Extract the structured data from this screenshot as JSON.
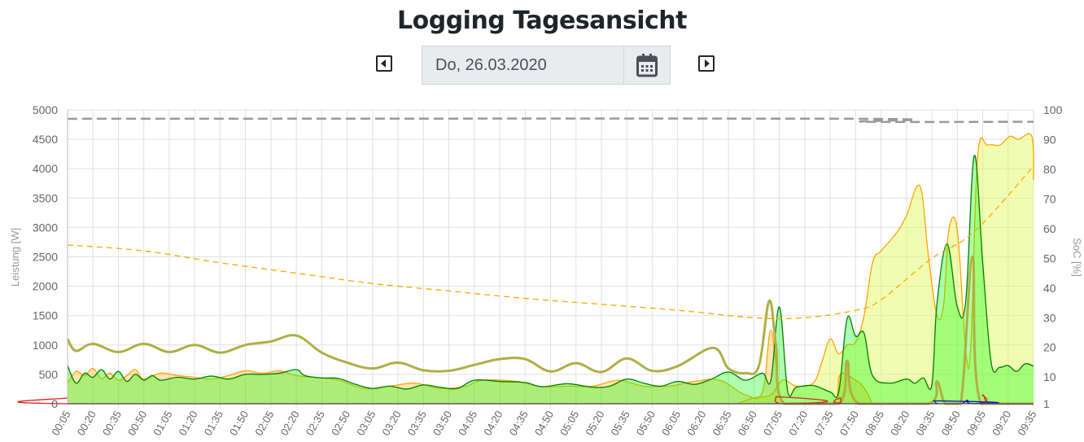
{
  "header": {
    "title": "Logging Tagesansicht",
    "date": "Do, 26.03.2020",
    "prev_icon": "caret-left-square-icon",
    "next_icon": "caret-right-square-icon",
    "calendar_icon": "calendar-icon"
  },
  "chart_data": {
    "type": "area",
    "xlabel": "",
    "ylabel_left": "Leistung [W]",
    "ylabel_right": "SoC [%]",
    "ylim_left": [
      0,
      5000
    ],
    "ylim_right": [
      1,
      100
    ],
    "yticks_left": [
      "0",
      "500",
      "1000",
      "1500",
      "2000",
      "2500",
      "3000",
      "3500",
      "4000",
      "4500",
      "5000"
    ],
    "yticks_right": [
      "1",
      "10",
      "20",
      "30",
      "40",
      "50",
      "60",
      "70",
      "80",
      "90",
      "100"
    ],
    "xticks": [
      "00:05",
      "00:20",
      "00:35",
      "00:50",
      "01:05",
      "01:20",
      "01:35",
      "01:50",
      "02:05",
      "02:20",
      "02:35",
      "02:50",
      "03:05",
      "03:20",
      "03:35",
      "03:50",
      "04:05",
      "04:20",
      "04:35",
      "04:50",
      "05:05",
      "05:20",
      "05:35",
      "05:50",
      "06:05",
      "06:20",
      "06:35",
      "06:50",
      "07:05",
      "07:20",
      "07:35",
      "07:50",
      "08:05",
      "08:20",
      "08:35",
      "08:50",
      "09:05",
      "09:20",
      "09:35"
    ],
    "grid": true,
    "series": [
      {
        "axis": "left",
        "color": "#ffa500",
        "fill": "rgba(225,250,100,0.5)",
        "style": "area",
        "points": [
          [
            "06:40",
            0
          ],
          [
            "06:50",
            100
          ],
          [
            "07:00",
            150
          ],
          [
            "07:07",
            400
          ],
          [
            "07:15",
            300
          ],
          [
            "07:25",
            350
          ],
          [
            "07:30",
            700
          ],
          [
            "07:35",
            1100
          ],
          [
            "07:40",
            850
          ],
          [
            "07:45",
            1000
          ],
          [
            "07:50",
            1050
          ],
          [
            "07:55",
            1500
          ],
          [
            "08:00",
            2400
          ],
          [
            "08:05",
            2600
          ],
          [
            "08:14",
            2900
          ],
          [
            "08:20",
            3200
          ],
          [
            "08:28",
            3700
          ],
          [
            "08:33",
            2500
          ],
          [
            "08:38",
            1500
          ],
          [
            "08:42",
            1700
          ],
          [
            "08:45",
            2950
          ],
          [
            "08:50",
            2950
          ],
          [
            "08:55",
            900
          ],
          [
            "08:58",
            1000
          ],
          [
            "09:02",
            4200
          ],
          [
            "09:08",
            4400
          ],
          [
            "09:15",
            4400
          ],
          [
            "09:21",
            4550
          ],
          [
            "09:26",
            4500
          ],
          [
            "09:34",
            4550
          ],
          [
            "09:35",
            3800
          ]
        ]
      },
      {
        "axis": "left",
        "color": "#ffa500",
        "fill": "rgba(255,165,0,0.3)",
        "style": "area",
        "points": [
          [
            "00:05",
            350
          ],
          [
            "00:10",
            550
          ],
          [
            "00:15",
            480
          ],
          [
            "00:20",
            600
          ],
          [
            "00:25",
            430
          ],
          [
            "00:30",
            520
          ],
          [
            "00:35",
            400
          ],
          [
            "00:40",
            480
          ],
          [
            "00:45",
            580
          ],
          [
            "00:50",
            420
          ],
          [
            "01:00",
            520
          ],
          [
            "01:10",
            480
          ],
          [
            "01:20",
            450
          ],
          [
            "01:30",
            420
          ],
          [
            "01:40",
            480
          ],
          [
            "01:50",
            560
          ],
          [
            "02:00",
            520
          ],
          [
            "02:10",
            560
          ],
          [
            "02:20",
            480
          ],
          [
            "02:30",
            450
          ],
          [
            "02:45",
            400
          ],
          [
            "03:00",
            260
          ],
          [
            "03:15",
            300
          ],
          [
            "03:30",
            350
          ],
          [
            "03:45",
            260
          ],
          [
            "04:00",
            300
          ],
          [
            "04:10",
            400
          ],
          [
            "04:30",
            380
          ],
          [
            "04:45",
            290
          ],
          [
            "05:00",
            300
          ],
          [
            "05:15",
            300
          ],
          [
            "05:30",
            400
          ],
          [
            "05:45",
            300
          ],
          [
            "06:00",
            300
          ],
          [
            "06:15",
            380
          ],
          [
            "06:30",
            400
          ],
          [
            "06:45",
            150
          ],
          [
            "06:55",
            200
          ],
          [
            "07:00",
            1250
          ],
          [
            "07:05",
            200
          ],
          [
            "07:10",
            0
          ],
          [
            "07:36",
            0
          ],
          [
            "07:41",
            500
          ],
          [
            "07:50",
            400
          ],
          [
            "07:55",
            270
          ],
          [
            "08:00",
            0
          ]
        ]
      },
      {
        "axis": "left",
        "color": "#008000",
        "fill": "rgba(0,255,0,0.32)",
        "style": "area",
        "points": [
          [
            "00:05",
            650
          ],
          [
            "00:10",
            350
          ],
          [
            "00:15",
            520
          ],
          [
            "00:20",
            450
          ],
          [
            "00:25",
            580
          ],
          [
            "00:30",
            420
          ],
          [
            "00:35",
            550
          ],
          [
            "00:40",
            380
          ],
          [
            "00:45",
            500
          ],
          [
            "00:50",
            400
          ],
          [
            "00:55",
            480
          ],
          [
            "01:00",
            400
          ],
          [
            "01:10",
            450
          ],
          [
            "01:20",
            420
          ],
          [
            "01:30",
            470
          ],
          [
            "01:40",
            420
          ],
          [
            "01:50",
            500
          ],
          [
            "02:00",
            500
          ],
          [
            "02:10",
            520
          ],
          [
            "02:20",
            580
          ],
          [
            "02:25",
            480
          ],
          [
            "02:35",
            440
          ],
          [
            "02:45",
            430
          ],
          [
            "02:55",
            330
          ],
          [
            "03:05",
            260
          ],
          [
            "03:15",
            300
          ],
          [
            "03:25",
            250
          ],
          [
            "03:35",
            320
          ],
          [
            "03:45",
            280
          ],
          [
            "03:55",
            260
          ],
          [
            "04:05",
            400
          ],
          [
            "04:20",
            380
          ],
          [
            "04:35",
            360
          ],
          [
            "04:45",
            290
          ],
          [
            "05:00",
            340
          ],
          [
            "05:15",
            280
          ],
          [
            "05:25",
            300
          ],
          [
            "05:35",
            420
          ],
          [
            "05:45",
            350
          ],
          [
            "05:55",
            300
          ],
          [
            "06:05",
            380
          ],
          [
            "06:15",
            330
          ],
          [
            "06:25",
            420
          ],
          [
            "06:35",
            540
          ],
          [
            "06:45",
            400
          ],
          [
            "06:55",
            520
          ],
          [
            "07:00",
            400
          ],
          [
            "07:05",
            1650
          ],
          [
            "07:10",
            200
          ],
          [
            "07:15",
            280
          ],
          [
            "07:25",
            310
          ],
          [
            "07:35",
            200
          ],
          [
            "07:40",
            190
          ],
          [
            "07:45",
            1450
          ],
          [
            "07:50",
            1150
          ],
          [
            "07:55",
            1200
          ],
          [
            "08:00",
            480
          ],
          [
            "08:10",
            350
          ],
          [
            "08:20",
            420
          ],
          [
            "08:25",
            350
          ],
          [
            "08:30",
            440
          ],
          [
            "08:35",
            320
          ],
          [
            "08:38",
            1700
          ],
          [
            "08:44",
            2720
          ],
          [
            "08:50",
            1650
          ],
          [
            "08:55",
            1750
          ],
          [
            "09:00",
            4220
          ],
          [
            "09:05",
            2400
          ],
          [
            "09:10",
            700
          ],
          [
            "09:15",
            620
          ],
          [
            "09:20",
            650
          ],
          [
            "09:25",
            550
          ],
          [
            "09:30",
            680
          ],
          [
            "09:35",
            640
          ]
        ]
      },
      {
        "axis": "left",
        "color": "#afaf45",
        "fill": "none",
        "style": "thick-line",
        "points": [
          [
            "00:05",
            1100
          ],
          [
            "00:10",
            900
          ],
          [
            "00:20",
            1020
          ],
          [
            "00:35",
            880
          ],
          [
            "00:50",
            1020
          ],
          [
            "01:05",
            880
          ],
          [
            "01:20",
            1000
          ],
          [
            "01:35",
            870
          ],
          [
            "01:50",
            1000
          ],
          [
            "02:05",
            1060
          ],
          [
            "02:20",
            1160
          ],
          [
            "02:35",
            870
          ],
          [
            "02:50",
            700
          ],
          [
            "03:05",
            600
          ],
          [
            "03:20",
            700
          ],
          [
            "03:35",
            570
          ],
          [
            "03:50",
            560
          ],
          [
            "04:05",
            660
          ],
          [
            "04:20",
            760
          ],
          [
            "04:35",
            760
          ],
          [
            "04:50",
            550
          ],
          [
            "05:05",
            690
          ],
          [
            "05:20",
            540
          ],
          [
            "05:35",
            770
          ],
          [
            "05:50",
            560
          ],
          [
            "06:05",
            640
          ],
          [
            "06:26",
            950
          ],
          [
            "06:35",
            600
          ],
          [
            "06:45",
            520
          ],
          [
            "06:53",
            650
          ],
          [
            "06:59",
            1750
          ],
          [
            "07:03",
            1000
          ],
          [
            "07:08",
            0
          ],
          [
            "07:40",
            0
          ],
          [
            "07:45",
            730
          ],
          [
            "07:52",
            0
          ],
          [
            "08:33",
            0
          ],
          [
            "08:38",
            380
          ],
          [
            "08:43",
            0
          ],
          [
            "08:52",
            0
          ],
          [
            "08:59",
            2500
          ],
          [
            "09:04",
            0
          ],
          [
            "09:35",
            0
          ]
        ]
      },
      {
        "axis": "left",
        "color": "#e02020",
        "fill": "none",
        "style": "line",
        "points": [
          [
            "00:05",
            100
          ],
          [
            "00:10",
            0
          ],
          [
            "07:00",
            0
          ],
          [
            "07:03",
            120
          ],
          [
            "07:06",
            0
          ],
          [
            "07:38",
            0
          ],
          [
            "07:41",
            100
          ],
          [
            "07:44",
            0
          ],
          [
            "09:00",
            0
          ],
          [
            "09:05",
            150
          ],
          [
            "09:10",
            0
          ],
          [
            "09:35",
            0
          ]
        ]
      },
      {
        "axis": "left",
        "color": "#1a1ab0",
        "fill": "none",
        "style": "line",
        "points": [
          [
            "00:05",
            0
          ],
          [
            "08:33",
            0
          ],
          [
            "08:36",
            50
          ],
          [
            "08:39",
            0
          ],
          [
            "08:52",
            0
          ],
          [
            "08:56",
            60
          ],
          [
            "09:00",
            0
          ],
          [
            "09:35",
            0
          ]
        ]
      },
      {
        "axis": "right",
        "color": "#ffa500",
        "fill": "none",
        "style": "dashed",
        "points": [
          [
            "00:05",
            54.5
          ],
          [
            "00:50",
            52.5
          ],
          [
            "01:35",
            48.5
          ],
          [
            "02:20",
            45
          ],
          [
            "03:05",
            41.5
          ],
          [
            "03:50",
            39
          ],
          [
            "04:35",
            36.5
          ],
          [
            "05:20",
            34.5
          ],
          [
            "06:05",
            32.5
          ],
          [
            "06:50",
            30
          ],
          [
            "07:20",
            30
          ],
          [
            "07:50",
            32.5
          ],
          [
            "08:05",
            36
          ],
          [
            "08:35",
            50
          ],
          [
            "09:00",
            59
          ],
          [
            "09:35",
            81
          ]
        ]
      },
      {
        "axis": "right",
        "color": "#999999",
        "fill": "none",
        "style": "thick-dashed",
        "points": [
          [
            "00:05",
            97
          ],
          [
            "07:50",
            97
          ],
          [
            "07:55",
            96
          ],
          [
            "09:35",
            96
          ]
        ]
      }
    ]
  }
}
